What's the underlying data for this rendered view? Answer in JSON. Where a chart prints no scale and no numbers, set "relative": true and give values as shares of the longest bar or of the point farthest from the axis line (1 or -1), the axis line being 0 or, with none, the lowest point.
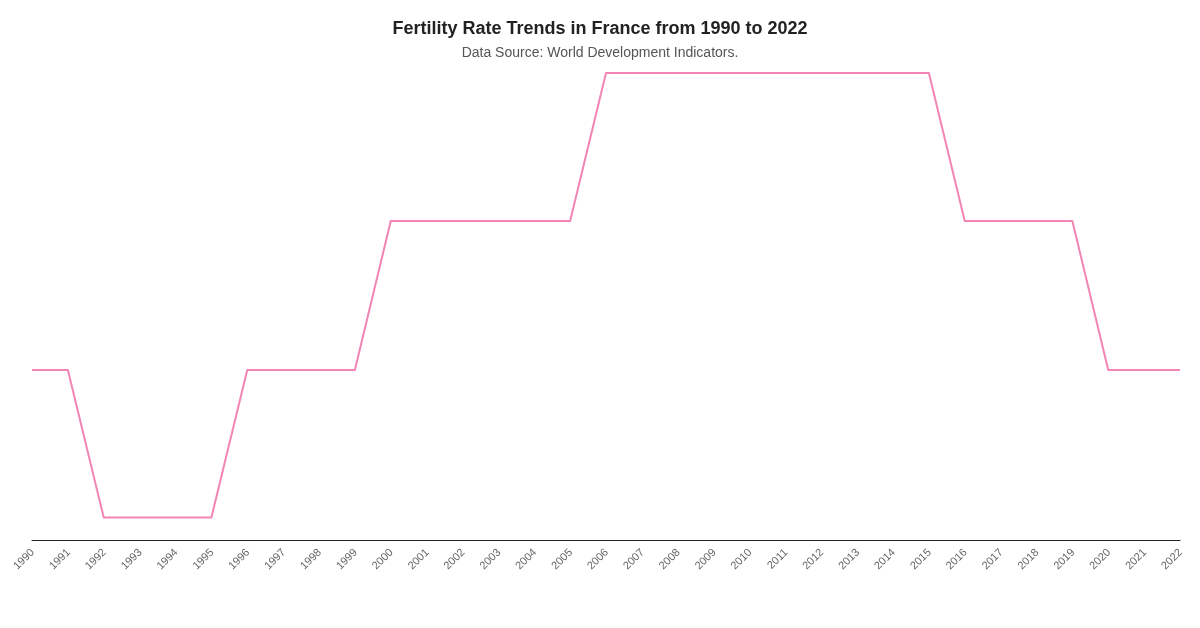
{
  "chart_data": {
    "type": "line",
    "title": "Fertility Rate Trends in France from 1990 to 2022",
    "subtitle": "Data Source: World Development Indicators.",
    "categories": [
      "1990",
      "1991",
      "1992",
      "1993",
      "1994",
      "1995",
      "1996",
      "1997",
      "1998",
      "1999",
      "2000",
      "2001",
      "2002",
      "2003",
      "2004",
      "2005",
      "2006",
      "2007",
      "2008",
      "2009",
      "2010",
      "2011",
      "2012",
      "2013",
      "2014",
      "2015",
      "2016",
      "2017",
      "2018",
      "2019",
      "2020",
      "2021",
      "2022"
    ],
    "relative": true,
    "series": [
      {
        "color": "#f285b5",
        "values": [
          0.364,
          0.364,
          0.048,
          0.048,
          0.048,
          0.048,
          0.364,
          0.364,
          0.364,
          0.364,
          0.683,
          0.683,
          0.683,
          0.683,
          0.683,
          0.683,
          1,
          1,
          1,
          1,
          1,
          1,
          1,
          1,
          1,
          1,
          0.683,
          0.683,
          0.683,
          0.683,
          0.364,
          0.364,
          0.364
        ]
      }
    ],
    "grid": false,
    "marker": "none"
  }
}
